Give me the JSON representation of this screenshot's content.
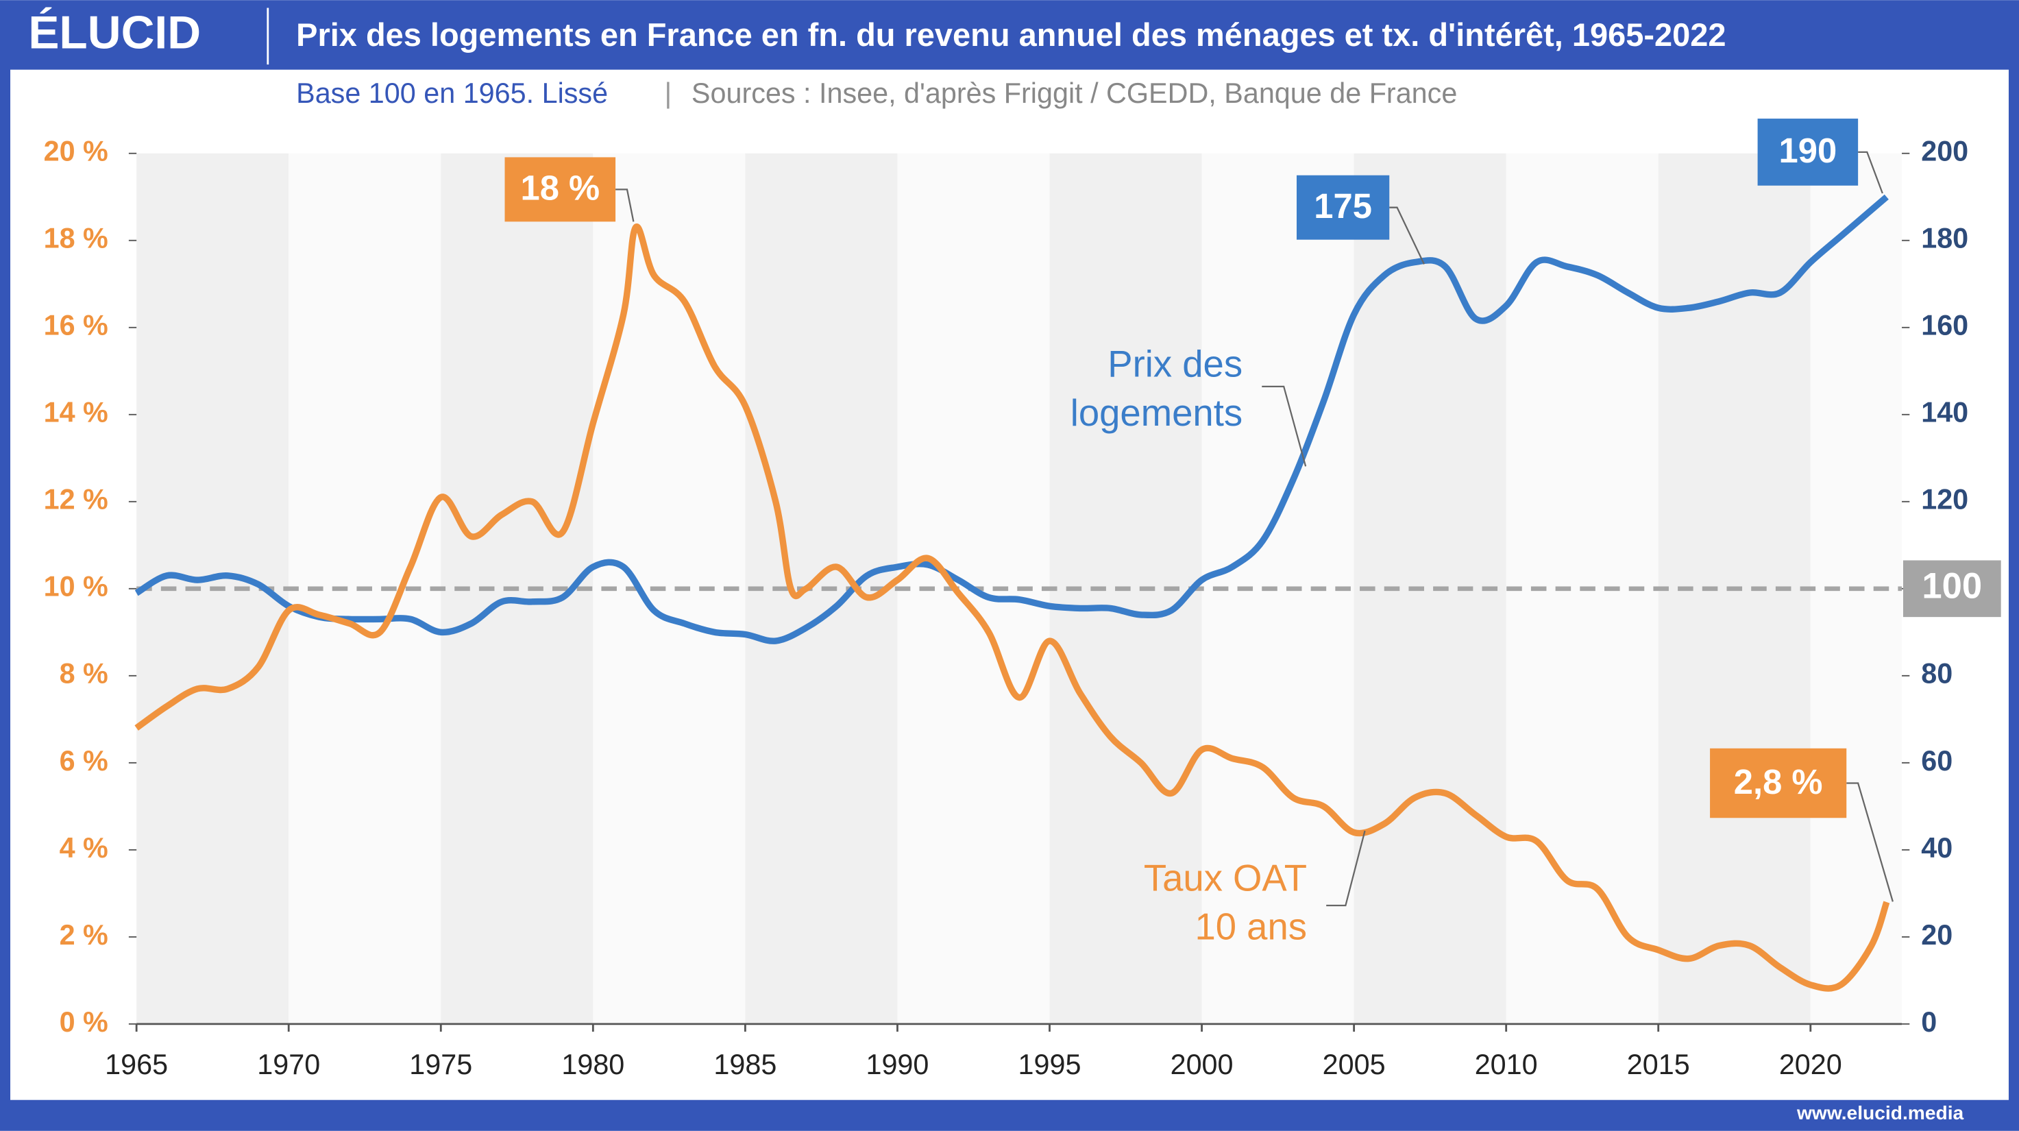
{
  "brand": "ÉLUCID",
  "footer": "www.elucid.media",
  "chart_data": {
    "type": "line",
    "title": "Prix des logements en France en fn. du revenu annuel des ménages et tx. d'intérêt, 1965-2022",
    "subtitle": "Base 100 en 1965. Lissé",
    "source": "Sources : Insee, d'après Friggit / CGEDD, Banque de France",
    "xlim": [
      1965,
      2023
    ],
    "xticks": [
      1965,
      1970,
      1975,
      1980,
      1985,
      1990,
      1995,
      2000,
      2005,
      2010,
      2015,
      2020
    ],
    "ylim": [
      0,
      20
    ],
    "yticks": [
      {
        "value": 0,
        "label": "0 %"
      },
      {
        "value": 2,
        "label": "2 %"
      },
      {
        "value": 4,
        "label": "4 %"
      },
      {
        "value": 6,
        "label": "6 %"
      },
      {
        "value": 8,
        "label": "8 %"
      },
      {
        "value": 10,
        "label": "10 %"
      },
      {
        "value": 12,
        "label": "12 %"
      },
      {
        "value": 14,
        "label": "14 %"
      },
      {
        "value": 16,
        "label": "16 %"
      },
      {
        "value": 18,
        "label": "18 %"
      },
      {
        "value": 20,
        "label": "20 %"
      }
    ],
    "y2lim": [
      0,
      200
    ],
    "y2ticks": [
      0,
      20,
      40,
      60,
      80,
      100,
      120,
      140,
      160,
      180,
      200
    ],
    "reference_line": {
      "value": 100,
      "axis": "y2",
      "color": "#a5a5a5"
    },
    "annotations": [
      "18 %",
      "175",
      "190",
      "2,8 %"
    ],
    "series": [
      {
        "name": "Prix des logements",
        "color": "#3a7dc9",
        "axis": "y2",
        "x": [
          1965,
          1966,
          1967,
          1968,
          1969,
          1970,
          1971,
          1972,
          1973,
          1974,
          1975,
          1976,
          1977,
          1978,
          1979,
          1980,
          1981,
          1982,
          1983,
          1984,
          1985,
          1986,
          1987,
          1988,
          1989,
          1990,
          1991,
          1992,
          1993,
          1994,
          1995,
          1996,
          1997,
          1998,
          1999,
          2000,
          2001,
          2002,
          2003,
          2004,
          2005,
          2006,
          2007,
          2008,
          2009,
          2010,
          2011,
          2012,
          2013,
          2014,
          2015,
          2016,
          2017,
          2018,
          2019,
          2020,
          2021,
          2022,
          2022.5
        ],
        "values": [
          99,
          103,
          102,
          103,
          101,
          96,
          93.5,
          93,
          93,
          93,
          90,
          92,
          97,
          97,
          98,
          105,
          105,
          95,
          92,
          90,
          89.5,
          88,
          91,
          96,
          103,
          105,
          105.5,
          102,
          98,
          97.5,
          96,
          95.5,
          95.5,
          94,
          95,
          102,
          105,
          111,
          125,
          143,
          163,
          172,
          175,
          174,
          162,
          165,
          175,
          174,
          172,
          168,
          164.5,
          164.5,
          166,
          168,
          168,
          175,
          181,
          187,
          190
        ]
      },
      {
        "name": "Taux OAT 10 ans",
        "color": "#f0933e",
        "axis": "y",
        "x": [
          1965,
          1966,
          1967,
          1968,
          1969,
          1970,
          1971,
          1972,
          1973,
          1974,
          1975,
          1976,
          1977,
          1978,
          1979,
          1980,
          1981,
          1981.4,
          1982,
          1983,
          1984,
          1985,
          1986,
          1986.5,
          1987,
          1988,
          1989,
          1990,
          1991,
          1992,
          1993,
          1994,
          1995,
          1996,
          1997,
          1998,
          1999,
          2000,
          2001,
          2002,
          2003,
          2004,
          2005,
          2006,
          2007,
          2008,
          2009,
          2010,
          2011,
          2012,
          2013,
          2014,
          2015,
          2016,
          2017,
          2018,
          2019,
          2020,
          2021,
          2022,
          2022.5
        ],
        "values": [
          6.8,
          7.3,
          7.7,
          7.7,
          8.2,
          9.5,
          9.4,
          9.2,
          9.0,
          10.5,
          12.1,
          11.2,
          11.7,
          12.0,
          11.3,
          13.8,
          16.3,
          18.3,
          17.2,
          16.6,
          15.1,
          14.2,
          12.0,
          10.0,
          10.0,
          10.5,
          9.8,
          10.2,
          10.7,
          9.9,
          9.0,
          7.5,
          8.8,
          7.6,
          6.6,
          6.0,
          5.3,
          6.3,
          6.1,
          5.9,
          5.2,
          5.0,
          4.4,
          4.6,
          5.2,
          5.3,
          4.8,
          4.3,
          4.2,
          3.3,
          3.1,
          2.0,
          1.7,
          1.5,
          1.8,
          1.8,
          1.3,
          0.9,
          0.9,
          1.8,
          2.8
        ]
      }
    ]
  }
}
